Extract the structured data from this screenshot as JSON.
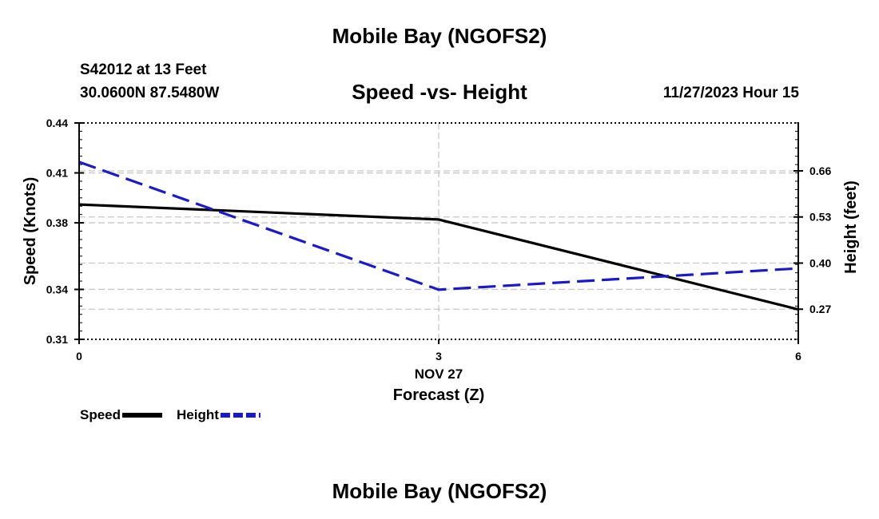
{
  "page": {
    "title_top": "Mobile Bay (NGOFS2)",
    "title_bottom": "Mobile Bay (NGOFS2)",
    "station": "S42012 at 13 Feet",
    "coords": "30.0600N  87.5480W",
    "datetime": "11/27/2023 Hour 15"
  },
  "chart_data": {
    "type": "line",
    "title": "Speed -vs- Height",
    "x": [
      0,
      3,
      6
    ],
    "x_tick_labels": [
      "0",
      "3",
      "6"
    ],
    "x_date_label": "NOV 27",
    "xlabel": "Forecast (Z)",
    "xlim": [
      0,
      6
    ],
    "y_left": {
      "label": "Speed (Knots)",
      "lim": [
        0.31,
        0.44
      ],
      "ticks": [
        0.31,
        0.34,
        0.38,
        0.41,
        0.44
      ],
      "tick_labels": [
        "0.31",
        "0.34",
        "0.38",
        "0.41",
        "0.44"
      ]
    },
    "y_right": {
      "label": "Height (feet)",
      "lim": [
        0.185,
        0.795
      ],
      "ticks": [
        0.27,
        0.4,
        0.53,
        0.66
      ],
      "tick_labels": [
        "0.27",
        "0.40",
        "0.53",
        "0.66"
      ]
    },
    "series": [
      {
        "name": "Speed",
        "axis": "left",
        "x": [
          0,
          3,
          6
        ],
        "values": [
          0.391,
          0.382,
          0.328
        ],
        "color": "#000000",
        "dash": "solid"
      },
      {
        "name": "Height",
        "axis": "right",
        "x": [
          0,
          3,
          6
        ],
        "values": [
          0.685,
          0.325,
          0.385
        ],
        "color": "#1a1acc",
        "dash": "dashed"
      }
    ],
    "legend": [
      {
        "label": "Speed",
        "color": "#000000",
        "dash": "solid"
      },
      {
        "label": "Height",
        "color": "#1a1acc",
        "dash": "dashed"
      }
    ],
    "grid": true
  }
}
